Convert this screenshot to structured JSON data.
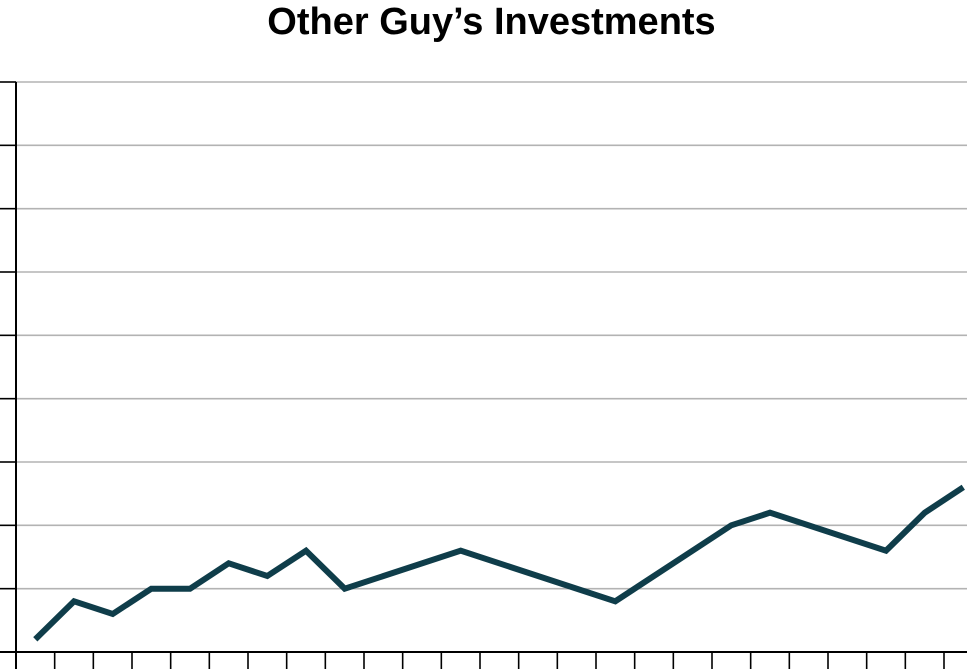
{
  "chart_data": {
    "type": "line",
    "title": "Other Guy’s Investments",
    "xlabel": "",
    "ylabel": "",
    "x": [
      0.5,
      1.5,
      2.5,
      3.5,
      4.5,
      5.5,
      6.5,
      7.5,
      8.5,
      11.5,
      15.5,
      18.5,
      19.5,
      22.5,
      23.5,
      24.5
    ],
    "series": [
      {
        "values": [
          0.2,
          0.8,
          0.6,
          1.0,
          1.0,
          1.4,
          1.2,
          1.6,
          1.0,
          1.6,
          0.8,
          2.0,
          2.2,
          1.6,
          2.2,
          2.6
        ],
        "color": "#0f3d4a"
      }
    ],
    "xlim": [
      0,
      25.5
    ],
    "ylim": [
      0,
      9
    ],
    "x_tick_count": 26,
    "y_tick_count": 9,
    "grid": true,
    "axis_color": "#000000",
    "grid_color": "#b3b3b3"
  }
}
